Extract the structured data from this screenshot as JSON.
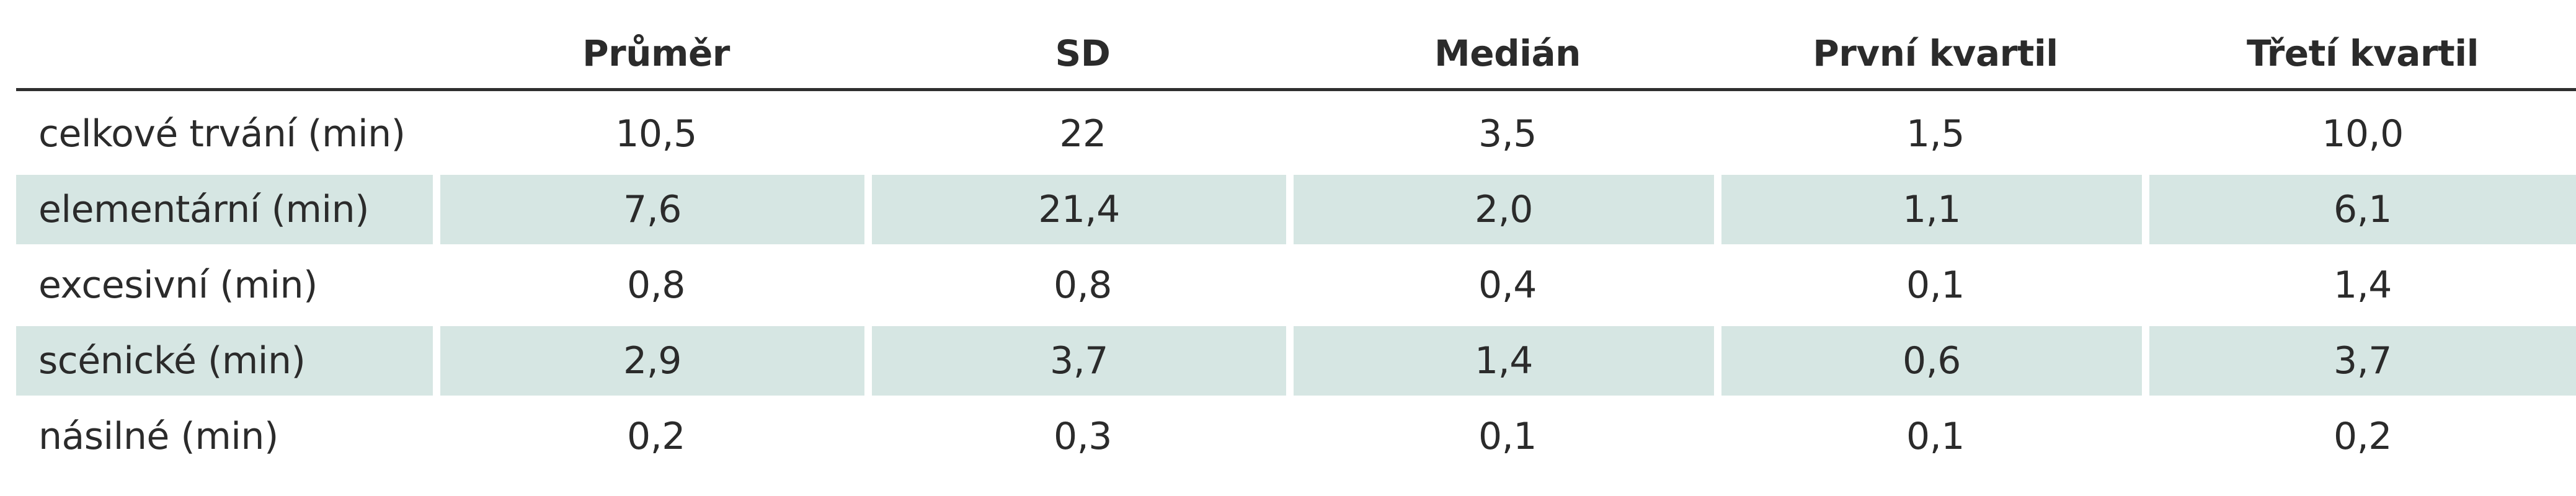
{
  "table": {
    "columns": [
      "",
      "Průměr",
      "SD",
      "Medián",
      "První kvartil",
      "Třetí kvartil"
    ],
    "rows": [
      {
        "label": "celkové trvání (min)",
        "values": [
          "10,5",
          "22",
          "3,5",
          "1,5",
          "10,0"
        ]
      },
      {
        "label": "elementární (min)",
        "values": [
          "7,6",
          "21,4",
          "2,0",
          "1,1",
          "6,1"
        ]
      },
      {
        "label": "excesivní (min)",
        "values": [
          "0,8",
          "0,8",
          "0,4",
          "0,1",
          "1,4"
        ]
      },
      {
        "label": "scénické (min)",
        "values": [
          "2,9",
          "3,7",
          "1,4",
          "0,6",
          "3,7"
        ]
      },
      {
        "label": "násilné (min)",
        "values": [
          "0,2",
          "0,3",
          "0,1",
          "0,1",
          "0,2"
        ]
      }
    ],
    "shade_color": "#d6e6e3"
  }
}
